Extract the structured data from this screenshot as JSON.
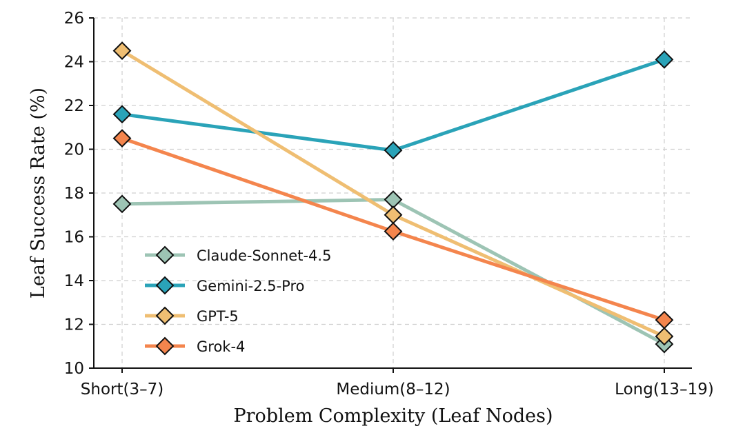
{
  "chart_data": {
    "type": "line",
    "title": "",
    "xlabel": "Problem Complexity (Leaf Nodes)",
    "ylabel": "Leaf Success Rate (%)",
    "categories": [
      "Short(3–7)",
      "Medium(8–12)",
      "Long(13–19)"
    ],
    "ylim": [
      10,
      26
    ],
    "yticks": [
      10,
      12,
      14,
      16,
      18,
      20,
      22,
      24,
      26
    ],
    "grid": true,
    "legend_position": "lower-left",
    "marker": "diamond",
    "series": [
      {
        "name": "Claude-Sonnet-4.5",
        "color": "#9dc4b4",
        "values": [
          17.5,
          17.7,
          11.1
        ]
      },
      {
        "name": "Gemini-2.5-Pro",
        "color": "#2aa3b8",
        "values": [
          21.6,
          19.95,
          24.1
        ]
      },
      {
        "name": "GPT-5",
        "color": "#efbe72",
        "values": [
          24.5,
          17.0,
          11.45
        ]
      },
      {
        "name": "Grok-4",
        "color": "#f4854d",
        "values": [
          20.5,
          16.25,
          12.2
        ]
      }
    ]
  }
}
